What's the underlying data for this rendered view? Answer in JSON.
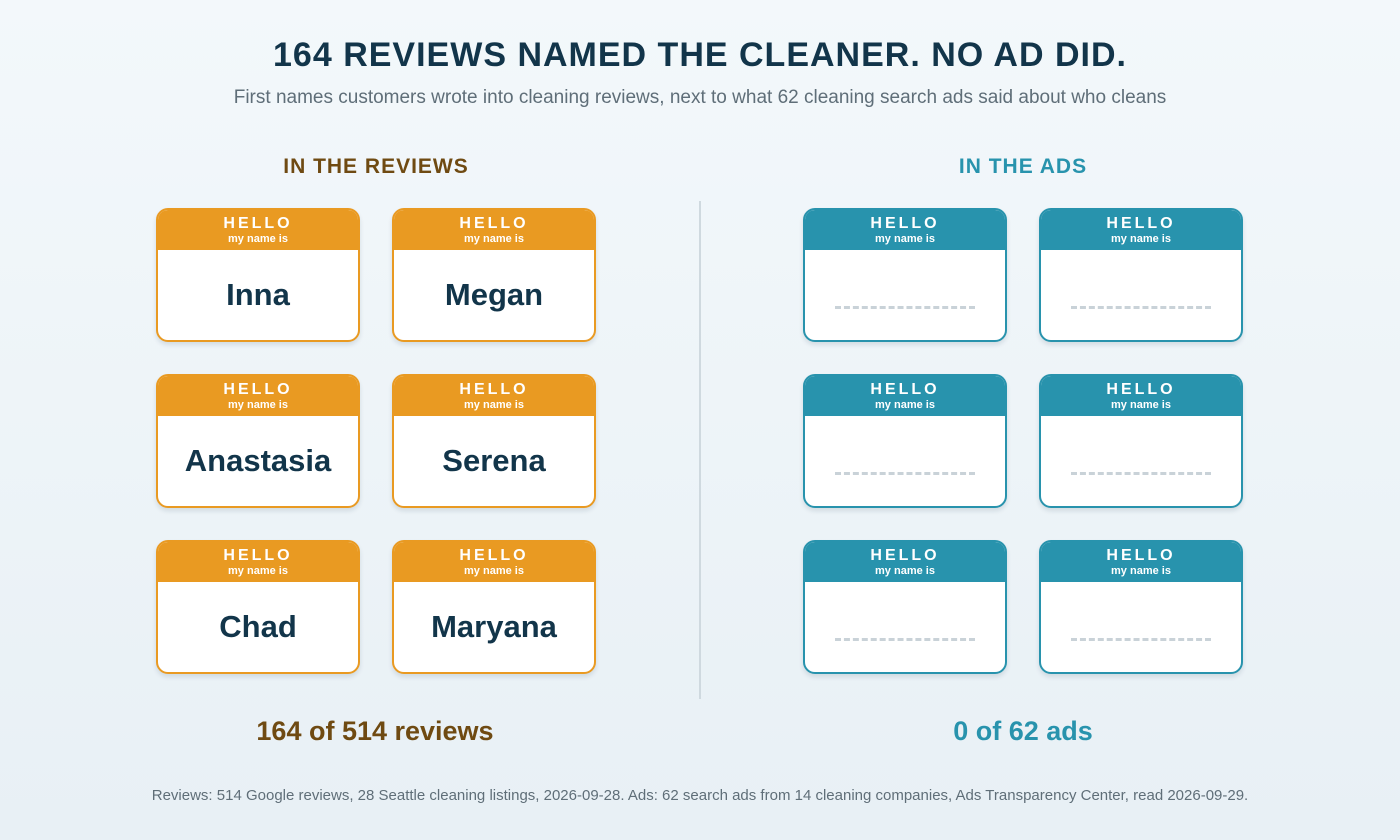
{
  "title": "164 REVIEWS NAMED THE CLEANER. NO AD DID.",
  "subtitle": "First names customers wrote into cleaning reviews, next to what 62 cleaning search ads said about who cleans",
  "reviews_column": {
    "heading": "IN THE REVIEWS",
    "tags": [
      {
        "hello": "HELLO",
        "my_name_is": "my name is",
        "name": "Inna"
      },
      {
        "hello": "HELLO",
        "my_name_is": "my name is",
        "name": "Megan"
      },
      {
        "hello": "HELLO",
        "my_name_is": "my name is",
        "name": "Anastasia"
      },
      {
        "hello": "HELLO",
        "my_name_is": "my name is",
        "name": "Serena"
      },
      {
        "hello": "HELLO",
        "my_name_is": "my name is",
        "name": "Chad"
      },
      {
        "hello": "HELLO",
        "my_name_is": "my name is",
        "name": "Maryana"
      }
    ],
    "stat": "164 of 514 reviews"
  },
  "ads_column": {
    "heading": "IN THE ADS",
    "tags": [
      {
        "hello": "HELLO",
        "my_name_is": "my name is"
      },
      {
        "hello": "HELLO",
        "my_name_is": "my name is"
      },
      {
        "hello": "HELLO",
        "my_name_is": "my name is"
      },
      {
        "hello": "HELLO",
        "my_name_is": "my name is"
      },
      {
        "hello": "HELLO",
        "my_name_is": "my name is"
      },
      {
        "hello": "HELLO",
        "my_name_is": "my name is"
      }
    ],
    "stat": "0 of 62 ads"
  },
  "source": "Reviews: 514 Google reviews, 28 Seattle cleaning listings, 2026-09-28. Ads: 62 search ads from 14 cleaning companies, Ads Transparency Center, read 2026-09-29.",
  "colors": {
    "reviews_accent": "#e99a22",
    "ads_accent": "#2893ad",
    "heading_text": "#12354a"
  }
}
